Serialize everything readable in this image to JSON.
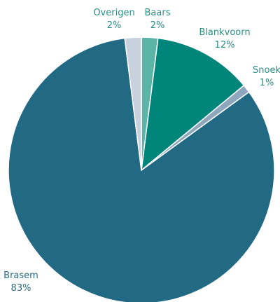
{
  "header": {
    "title_fragment": ""
  },
  "chart_data": {
    "type": "pie",
    "title": "",
    "slices": [
      {
        "name": "Baars",
        "value": 2,
        "label_value": "2%",
        "color": "#5bb5a6"
      },
      {
        "name": "Blankvoorn",
        "value": 12,
        "label_value": "12%",
        "color": "#00857a"
      },
      {
        "name": "Snoek",
        "value": 1,
        "label_value": "1%",
        "color": "#8ea7bd"
      },
      {
        "name": "Brasem",
        "value": 83,
        "label_value": "83%",
        "color": "#226a84"
      },
      {
        "name": "Overigen",
        "value": 2,
        "label_value": "2%",
        "color": "#c7d2de"
      }
    ],
    "label_colors": {
      "Baars": "#2a8f82",
      "Blankvoorn": "#2a8f82",
      "Snoek": "#2a8f82",
      "Brasem": "#2a6b82",
      "Overigen": "#2a8f82"
    },
    "start_angle_deg": 0,
    "direction": "clockwise",
    "legend": "none"
  }
}
